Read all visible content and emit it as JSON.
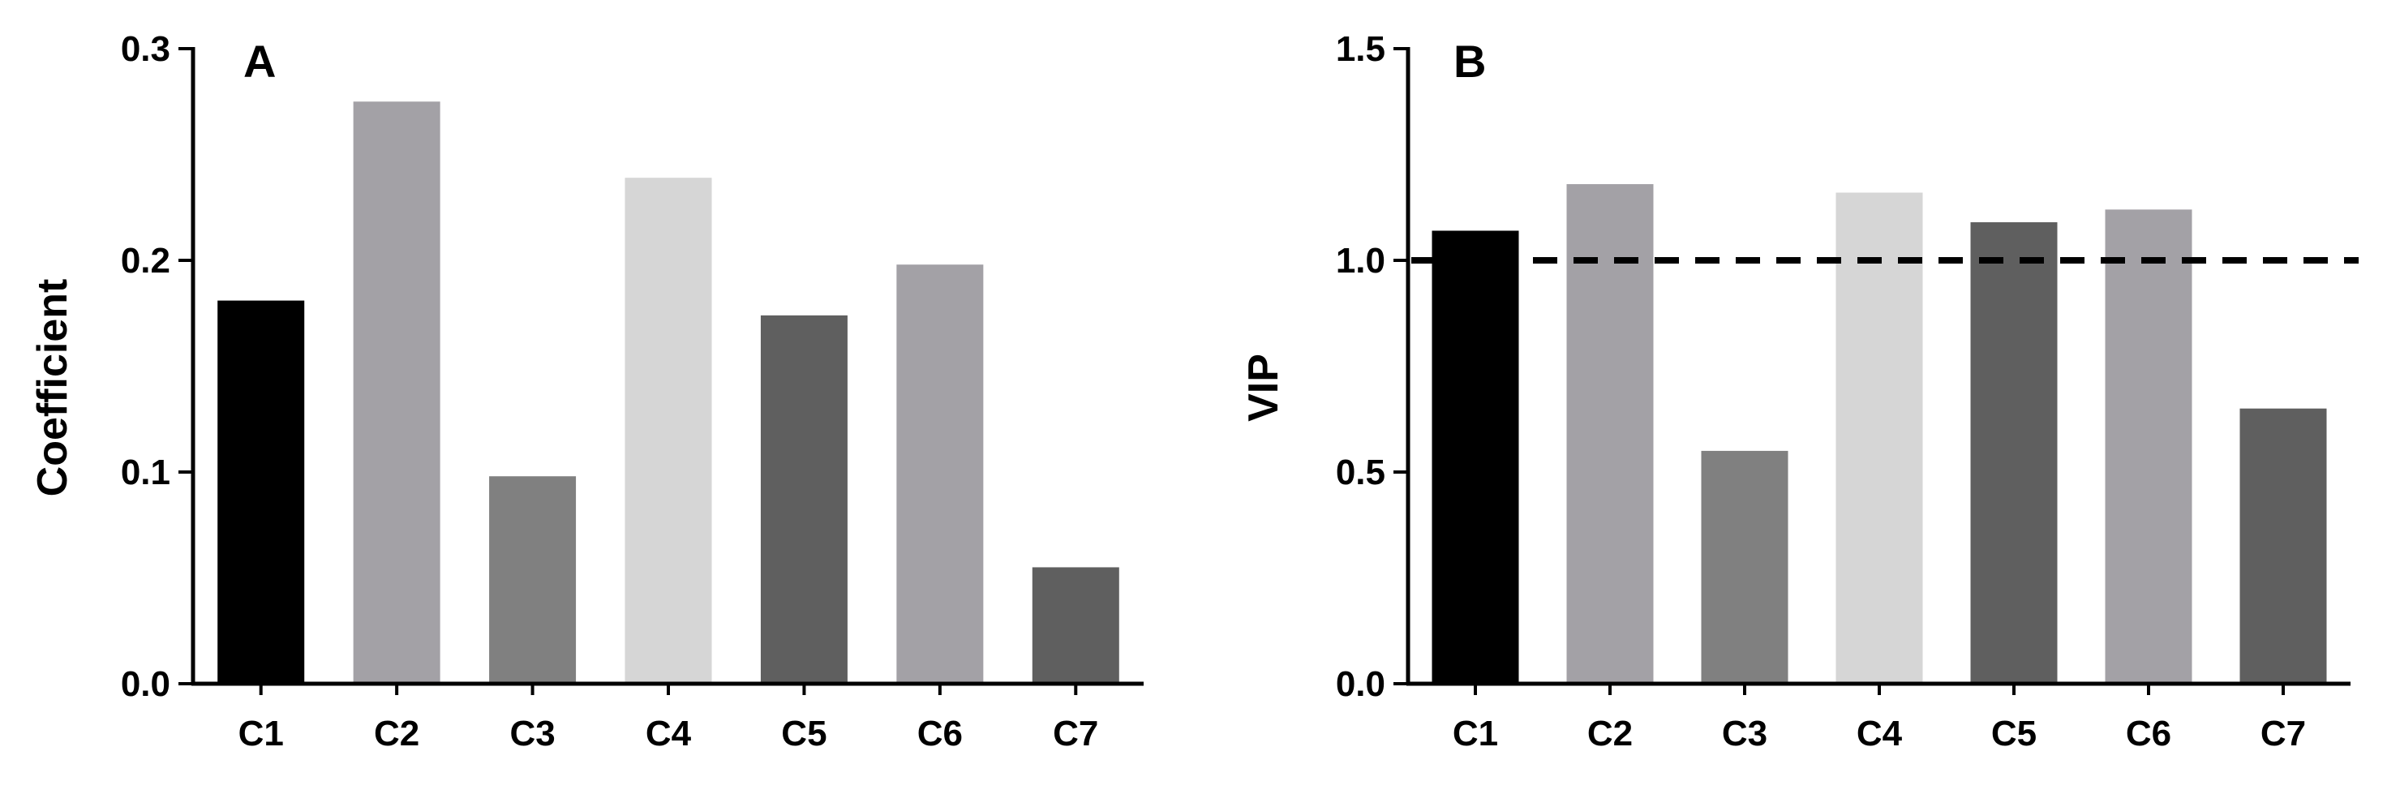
{
  "chart_data": [
    {
      "type": "bar",
      "panel_label": "A",
      "categories": [
        "C1",
        "C2",
        "C3",
        "C4",
        "C5",
        "C6",
        "C7"
      ],
      "values": [
        0.181,
        0.275,
        0.098,
        0.239,
        0.174,
        0.198,
        0.055
      ],
      "bar_colors": [
        "#000000",
        "#a3a1a6",
        "#808080",
        "#d6d6d6",
        "#5f5f5f",
        "#a3a1a6",
        "#5f5f5f"
      ],
      "xlabel": "",
      "ylabel": "Coefficient",
      "ylim": [
        0,
        0.3
      ],
      "yticks": [
        "0.0",
        "0.1",
        "0.2",
        "0.3"
      ],
      "grid": false,
      "legend": "none"
    },
    {
      "type": "bar",
      "panel_label": "B",
      "categories": [
        "C1",
        "C2",
        "C3",
        "C4",
        "C5",
        "C6",
        "C7"
      ],
      "values": [
        1.07,
        1.18,
        0.55,
        1.16,
        1.09,
        1.12,
        0.65
      ],
      "bar_colors": [
        "#000000",
        "#a3a1a6",
        "#808080",
        "#d6d6d6",
        "#5f5f5f",
        "#a3a1a6",
        "#5f5f5f"
      ],
      "xlabel": "",
      "ylabel": "VIP",
      "ylim": [
        0,
        1.5
      ],
      "yticks": [
        "0.0",
        "0.5",
        "1.0",
        "1.5"
      ],
      "reference_line": {
        "y": 1.0,
        "style": "dashed"
      },
      "grid": false,
      "legend": "none"
    }
  ]
}
